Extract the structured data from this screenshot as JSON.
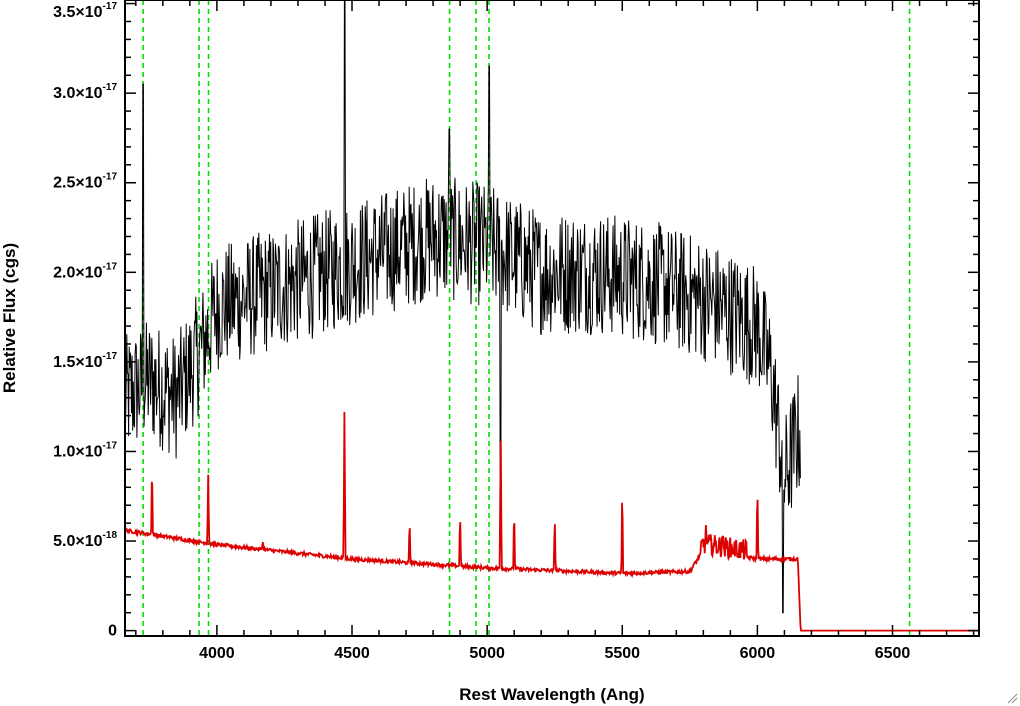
{
  "chart_data": {
    "type": "line",
    "xlabel": "Rest Wavelength (Ang)",
    "ylabel": "Relative Flux (cgs)",
    "xlim": [
      3660,
      6820
    ],
    "ylim": [
      -3e-19,
      3.52e-17
    ],
    "x_ticks": [
      {
        "value": 4000,
        "label": "4000"
      },
      {
        "value": 4500,
        "label": "4500"
      },
      {
        "value": 5000,
        "label": "5000"
      },
      {
        "value": 5500,
        "label": "5500"
      },
      {
        "value": 6000,
        "label": "6000"
      },
      {
        "value": 6500,
        "label": "6500"
      }
    ],
    "y_ticks": [
      {
        "value": 0,
        "mantissa": "0",
        "exponent": ""
      },
      {
        "value": 5e-18,
        "mantissa": "5.0×10",
        "exponent": "-18"
      },
      {
        "value": 1e-17,
        "mantissa": "1.0×10",
        "exponent": "-17"
      },
      {
        "value": 1.5e-17,
        "mantissa": "1.5×10",
        "exponent": "-17"
      },
      {
        "value": 2e-17,
        "mantissa": "2.0×10",
        "exponent": "-17"
      },
      {
        "value": 2.5e-17,
        "mantissa": "2.5×10",
        "exponent": "-17"
      },
      {
        "value": 3e-17,
        "mantissa": "3.0×10",
        "exponent": "-17"
      },
      {
        "value": 3.5e-17,
        "mantissa": "3.5×10",
        "exponent": "-17"
      }
    ],
    "reference_lines": {
      "color": "#00dd00",
      "style": "dashed",
      "x": [
        3727,
        3934,
        3969,
        4861,
        4959,
        5007,
        6563
      ]
    },
    "series": [
      {
        "color": "#000000",
        "noisy": true,
        "x_range": [
          3660,
          6160
        ],
        "continuum": [
          [
            3660,
            1.3e-17
          ],
          [
            3750,
            1.4e-17
          ],
          [
            3850,
            1.3e-17
          ],
          [
            3950,
            1.6e-17
          ],
          [
            4000,
            1.8e-17
          ],
          [
            4200,
            1.9e-17
          ],
          [
            4400,
            2e-17
          ],
          [
            4600,
            2.1e-17
          ],
          [
            4800,
            2.2e-17
          ],
          [
            5000,
            2.15e-17
          ],
          [
            5200,
            2e-17
          ],
          [
            5400,
            2e-17
          ],
          [
            5600,
            1.95e-17
          ],
          [
            5800,
            1.85e-17
          ],
          [
            6000,
            1.7e-17
          ],
          [
            6050,
            1.45e-17
          ],
          [
            6100,
            8.5e-18
          ],
          [
            6150,
            1.1e-17
          ]
        ],
        "noise_amplitude": 3.5e-18,
        "spikes": [
          [
            3727,
            3.05e-17
          ],
          [
            4472,
            3.52e-17
          ],
          [
            4861,
            2.8e-17
          ],
          [
            5007,
            3.15e-17
          ],
          [
            5050,
            7e-18
          ],
          [
            6095,
            1e-18
          ]
        ]
      },
      {
        "color": "#dd0000",
        "noisy": false,
        "continuum": [
          [
            3660,
            5.6e-18
          ],
          [
            4000,
            4.8e-18
          ],
          [
            4500,
            4e-18
          ],
          [
            5000,
            3.5e-18
          ],
          [
            5500,
            3.2e-18
          ],
          [
            5750,
            3.3e-18
          ],
          [
            5800,
            4.5e-18
          ],
          [
            6000,
            4e-18
          ],
          [
            6150,
            4e-18
          ],
          [
            6160,
            0.0
          ],
          [
            6820,
            0.0
          ]
        ],
        "emission_lines": [
          [
            3760,
            9.5e-18
          ],
          [
            3968,
            8.7e-18
          ],
          [
            4170,
            5e-18
          ],
          [
            4472,
            1.27e-17
          ],
          [
            4713,
            6.3e-18
          ],
          [
            4900,
            6.8e-18
          ],
          [
            5050,
            1.15e-17
          ],
          [
            5100,
            7e-18
          ],
          [
            5250,
            6.5e-18
          ],
          [
            5500,
            8.3e-18
          ],
          [
            5810,
            6e-18
          ],
          [
            5870,
            5.5e-18
          ],
          [
            6000,
            8.3e-18
          ]
        ]
      }
    ]
  }
}
